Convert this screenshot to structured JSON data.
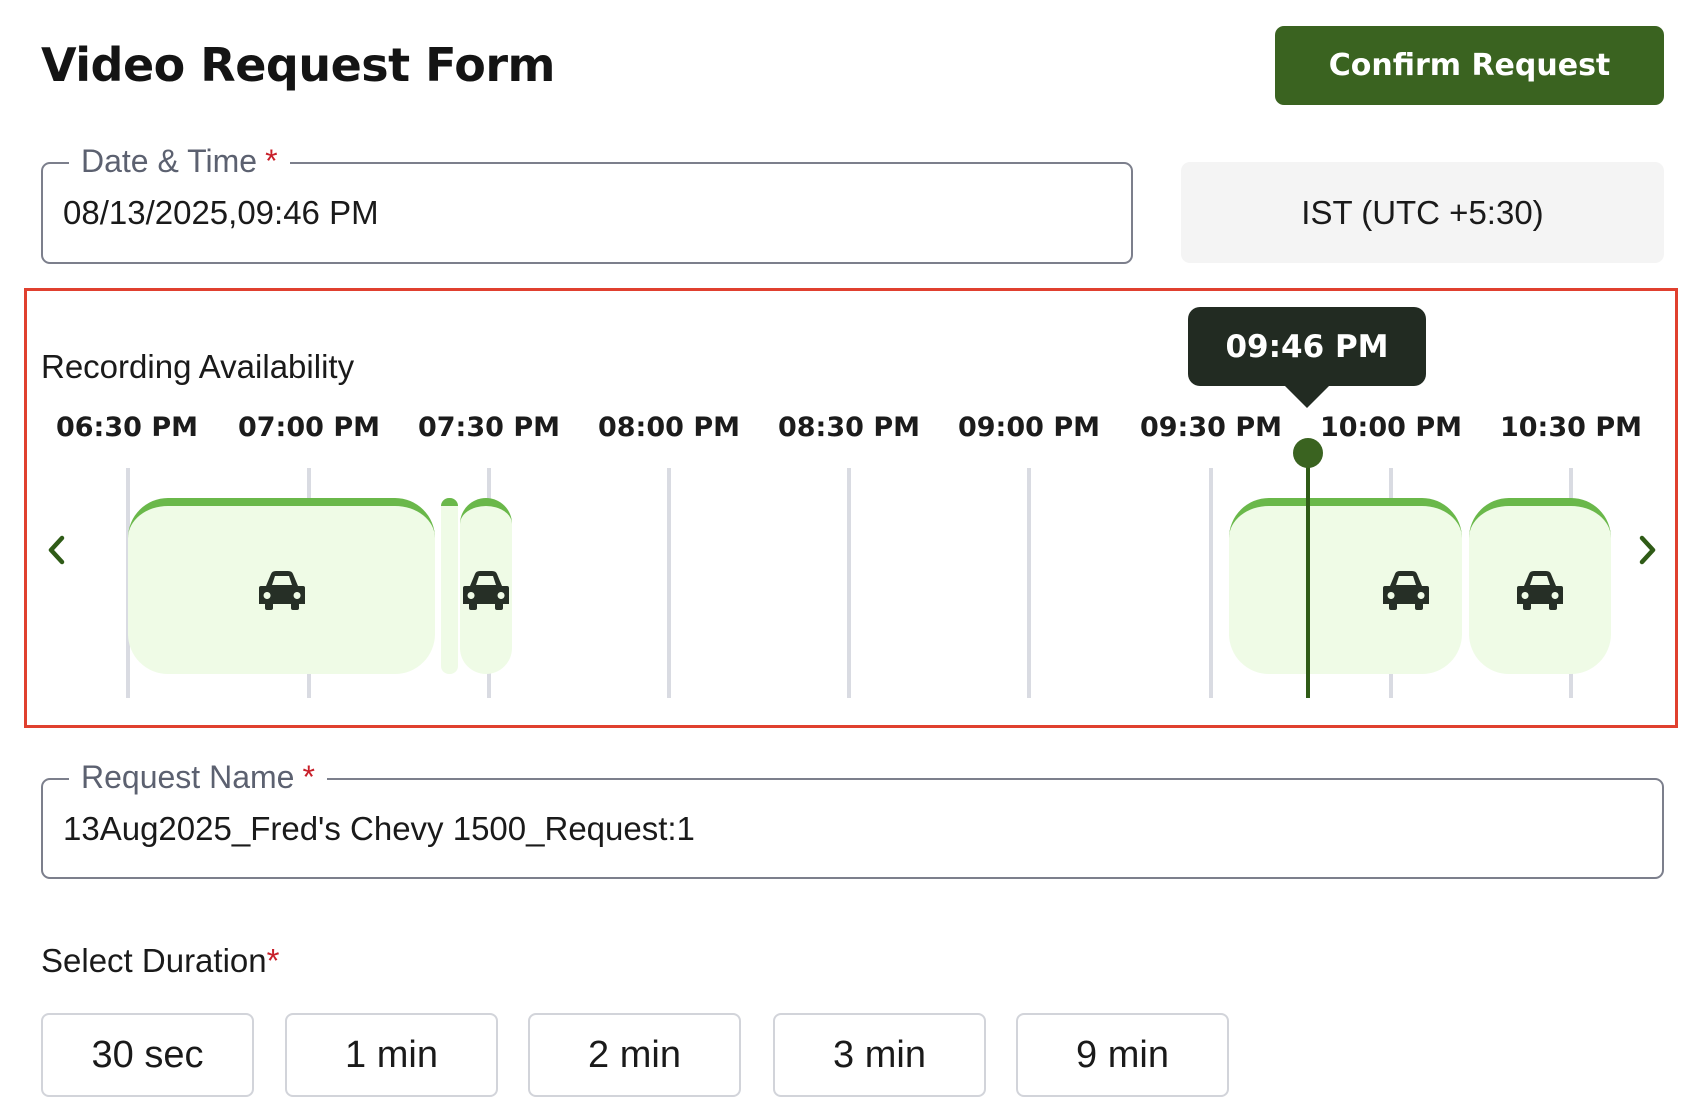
{
  "header": {
    "title": "Video Request Form",
    "confirm_label": "Confirm Request"
  },
  "date_time": {
    "label": "Date & Time",
    "required_mark": "*",
    "value": "08/13/2025,09:46 PM"
  },
  "timezone": "IST (UTC +5:30)",
  "recording": {
    "label": "Recording Availability",
    "ticks": [
      "06:30 PM",
      "07:00 PM",
      "07:30 PM",
      "08:00 PM",
      "08:30 PM",
      "09:00 PM",
      "09:30 PM",
      "10:00 PM",
      "10:30 PM"
    ],
    "cursor_time": "09:46 PM",
    "segment_icon": "car-icon",
    "prev_icon": "chevron-left-icon",
    "next_icon": "chevron-right-icon",
    "accent_color": "#6ab84a",
    "segment_fill": "#effbe6"
  },
  "request_name": {
    "label": "Request Name",
    "required_mark": "*",
    "value": "13Aug2025_Fred's Chevy 1500_Request:1"
  },
  "duration": {
    "label": "Select Duration",
    "required_mark": "*",
    "options": [
      "30 sec",
      "1 min",
      "2 min",
      "3 min",
      "9 min"
    ]
  },
  "colors": {
    "primary": "#3a6320",
    "required": "#c8202a",
    "highlight": "#e0402f"
  }
}
